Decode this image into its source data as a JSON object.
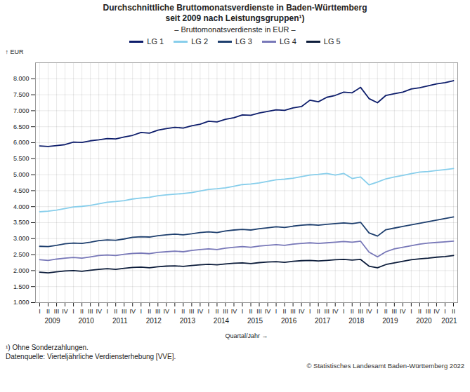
{
  "chart_data": {
    "type": "line",
    "title": "Durchschnittliche Bruttomonatsverdienste in Baden-Württemberg\nseit 2009 nach Leistungsgruppen¹)",
    "subtitle": "– Bruttomonatsverdienste in EUR –",
    "ylabel": "EUR",
    "xlabel": "Quartal/Jahr",
    "footnotes": [
      "¹) Ohne Sonderzahlungen.",
      "Datenquelle: Vierteljährliche Verdiensterhebung [VVE]."
    ],
    "copyright": "© Statistisches Landesamt Baden-Württemberg 2022",
    "categories": [
      "I",
      "II",
      "III",
      "IV",
      "I",
      "II",
      "III",
      "IV",
      "I",
      "II",
      "III",
      "IV",
      "I",
      "II",
      "III",
      "IV",
      "I",
      "II",
      "III",
      "IV",
      "I",
      "II",
      "III",
      "IV",
      "I",
      "II",
      "III",
      "IV",
      "I",
      "II",
      "III",
      "IV",
      "I",
      "II",
      "III",
      "IV",
      "I",
      "II",
      "III",
      "IV",
      "I",
      "II",
      "III",
      "IV",
      "I",
      "II",
      "III",
      "IV",
      "I",
      "II"
    ],
    "category_groups": [
      2009,
      2009,
      2009,
      2009,
      2010,
      2010,
      2010,
      2010,
      2011,
      2011,
      2011,
      2011,
      2012,
      2012,
      2012,
      2012,
      2013,
      2013,
      2013,
      2013,
      2014,
      2014,
      2014,
      2014,
      2015,
      2015,
      2015,
      2015,
      2016,
      2016,
      2016,
      2016,
      2017,
      2017,
      2017,
      2017,
      2018,
      2018,
      2018,
      2018,
      2019,
      2019,
      2019,
      2019,
      2020,
      2020,
      2020,
      2020,
      2021,
      2021
    ],
    "series": [
      {
        "name": "LG 1",
        "color": "#0d1d6b",
        "values": [
          5900,
          5880,
          5910,
          5940,
          6020,
          6010,
          6060,
          6090,
          6130,
          6120,
          6180,
          6230,
          6320,
          6300,
          6390,
          6440,
          6480,
          6460,
          6530,
          6580,
          6670,
          6650,
          6730,
          6780,
          6870,
          6860,
          6930,
          6980,
          7030,
          7010,
          7090,
          7130,
          7330,
          7280,
          7420,
          7480,
          7580,
          7560,
          7730,
          7380,
          7250,
          7480,
          7530,
          7580,
          7680,
          7720,
          7780,
          7840,
          7880,
          7940
        ]
      },
      {
        "name": "LG 2",
        "color": "#87CEEB",
        "values": [
          3840,
          3860,
          3890,
          3940,
          3990,
          4010,
          4040,
          4090,
          4140,
          4160,
          4190,
          4240,
          4270,
          4290,
          4340,
          4370,
          4390,
          4410,
          4440,
          4490,
          4540,
          4560,
          4590,
          4640,
          4690,
          4710,
          4740,
          4790,
          4840,
          4860,
          4890,
          4940,
          4990,
          5010,
          5040,
          4990,
          5040,
          4880,
          4930,
          4680,
          4770,
          4870,
          4930,
          4980,
          5030,
          5080,
          5100,
          5130,
          5160,
          5190
        ]
      },
      {
        "name": "LG 3",
        "color": "#1e3f6e",
        "values": [
          2760,
          2750,
          2790,
          2840,
          2860,
          2850,
          2890,
          2940,
          2960,
          2950,
          2990,
          3040,
          3060,
          3050,
          3090,
          3120,
          3140,
          3120,
          3150,
          3190,
          3210,
          3190,
          3240,
          3270,
          3290,
          3270,
          3310,
          3340,
          3370,
          3350,
          3390,
          3420,
          3440,
          3420,
          3450,
          3470,
          3490,
          3470,
          3510,
          3180,
          3080,
          3280,
          3330,
          3380,
          3430,
          3480,
          3530,
          3580,
          3630,
          3680
        ]
      },
      {
        "name": "LG 4",
        "color": "#7878b8",
        "values": [
          2340,
          2320,
          2360,
          2390,
          2410,
          2390,
          2430,
          2470,
          2490,
          2470,
          2510,
          2540,
          2550,
          2530,
          2570,
          2590,
          2610,
          2590,
          2630,
          2660,
          2680,
          2660,
          2700,
          2730,
          2750,
          2730,
          2770,
          2790,
          2810,
          2790,
          2830,
          2850,
          2870,
          2850,
          2870,
          2890,
          2910,
          2890,
          2920,
          2580,
          2430,
          2590,
          2680,
          2730,
          2780,
          2830,
          2860,
          2880,
          2900,
          2920
        ]
      },
      {
        "name": "LG 5",
        "color": "#0d1d3b",
        "values": [
          1950,
          1930,
          1960,
          1990,
          2000,
          1980,
          2010,
          2040,
          2060,
          2040,
          2070,
          2100,
          2110,
          2090,
          2120,
          2140,
          2150,
          2130,
          2160,
          2180,
          2200,
          2180,
          2210,
          2230,
          2240,
          2220,
          2250,
          2270,
          2280,
          2260,
          2290,
          2310,
          2320,
          2300,
          2320,
          2340,
          2350,
          2330,
          2350,
          2140,
          2090,
          2190,
          2240,
          2290,
          2340,
          2370,
          2390,
          2420,
          2440,
          2470
        ]
      }
    ],
    "ylim": [
      1000,
      8500
    ],
    "yticks": [
      {
        "value": 1000,
        "label": "1.000"
      },
      {
        "value": 1500,
        "label": "1.500"
      },
      {
        "value": 2000,
        "label": "2.000"
      },
      {
        "value": 2500,
        "label": "2.500"
      },
      {
        "value": 3000,
        "label": "3.000"
      },
      {
        "value": 3500,
        "label": "3.500"
      },
      {
        "value": 4000,
        "label": "4.000"
      },
      {
        "value": 4500,
        "label": "4.500"
      },
      {
        "value": 5000,
        "label": "5.000"
      },
      {
        "value": 5500,
        "label": "5.500"
      },
      {
        "value": 6000,
        "label": "6.000"
      },
      {
        "value": 6500,
        "label": "6.500"
      },
      {
        "value": 7000,
        "label": "7.000"
      },
      {
        "value": 7500,
        "label": "7.500"
      },
      {
        "value": 8000,
        "label": "8.000"
      }
    ],
    "grid": true,
    "legend": "top"
  }
}
